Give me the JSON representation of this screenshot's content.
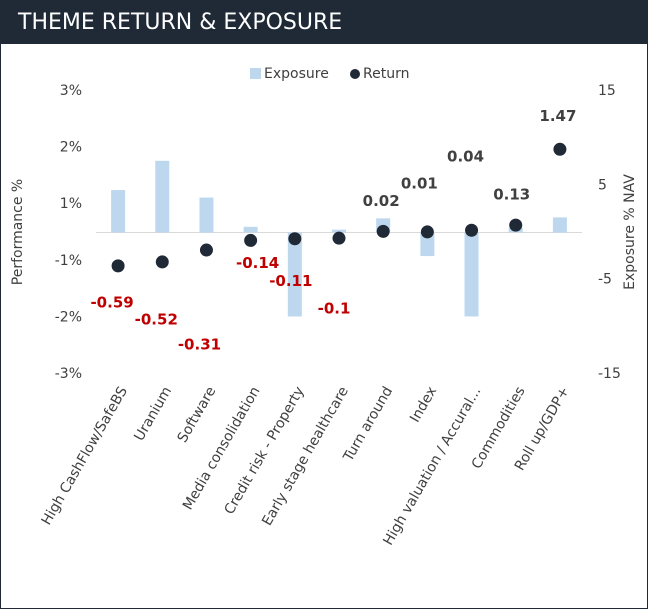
{
  "chart_data": {
    "type": "bar",
    "title": "THEME RETURN & EXPOSURE",
    "categories": [
      "High CashFlow/SafeBS",
      "Uranium",
      "Software",
      "Media consolidation",
      "Credit risk - Property",
      "Early stage healthcare",
      "Turn around",
      "Index",
      "High valuation / Accural...",
      "Commodities",
      "Roll up/GDP+"
    ],
    "series": [
      {
        "name": "Exposure",
        "color": "#bdd7ee",
        "axis": "y2",
        "values": [
          4.5,
          7.6,
          3.7,
          0.6,
          -8.9,
          0.3,
          1.5,
          -2.5,
          -8.9,
          0.5,
          1.6
        ]
      },
      {
        "name": "Return",
        "color": "#1f2a36",
        "values": [
          -0.59,
          -0.52,
          -0.31,
          -0.14,
          -0.11,
          -0.1,
          0.02,
          0.01,
          0.04,
          0.13,
          1.47
        ]
      }
    ],
    "ylabel": "Performance %",
    "y2label": "Exposure % NAV",
    "ylim": [
      -2.5,
      2.5
    ],
    "yticks": [
      {
        "value": 2.5,
        "label": "3%"
      },
      {
        "value": 1.5,
        "label": "2%"
      },
      {
        "value": 0.5,
        "label": "1%"
      },
      {
        "value": -0.5,
        "label": "-1%"
      },
      {
        "value": -1.5,
        "label": "-2%"
      },
      {
        "value": -2.5,
        "label": "-3%"
      }
    ],
    "y2lim": [
      -15,
      15
    ],
    "y2ticks": [
      15,
      5,
      -5,
      -15
    ],
    "legend": "top",
    "negative_label_color": "#c00000"
  }
}
